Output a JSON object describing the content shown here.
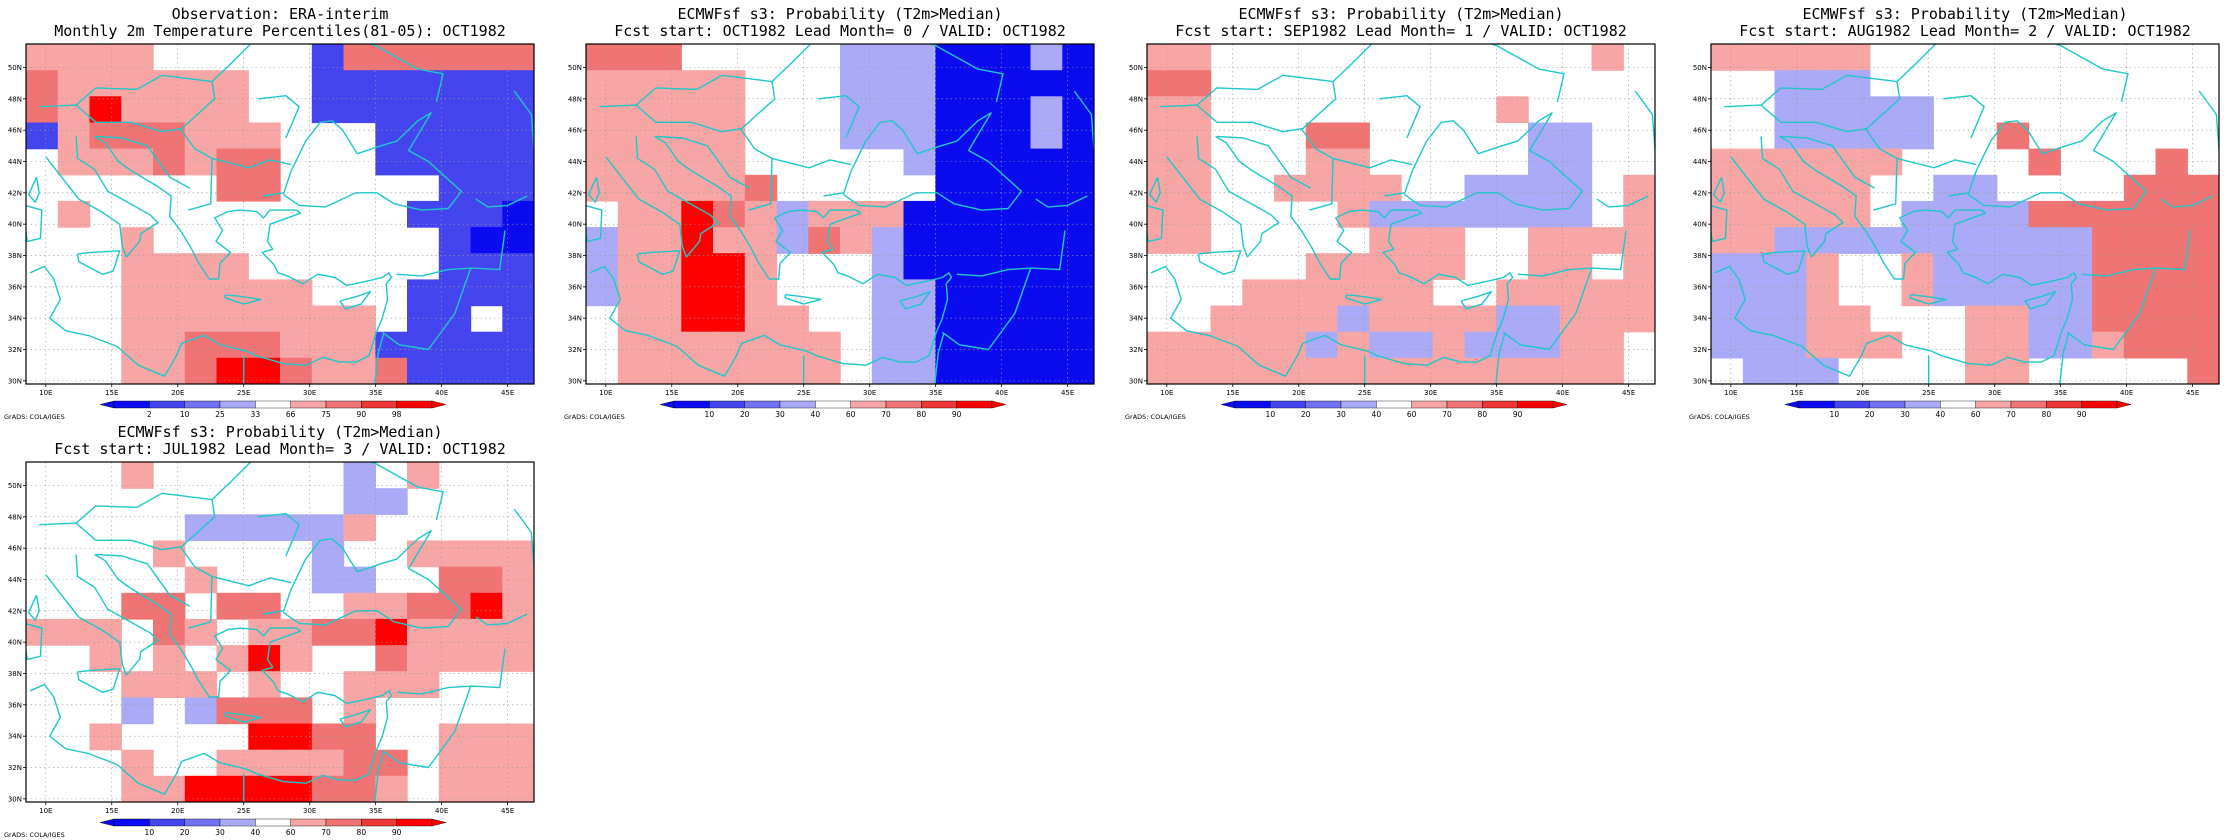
{
  "colors": {
    "dark_red": "#ff0000",
    "red": "#ee3838",
    "mid_red": "#f07474",
    "light_red": "#f8a5a5",
    "white": "#ffffff",
    "light_blue": "#aaaaf6",
    "mid_blue": "#7272f2",
    "blue": "#4545f0",
    "dark_blue": "#0b0bf0",
    "coast": "#1ec8c8",
    "grid": "#9a9a9a"
  },
  "axes": {
    "lon_labels": [
      "10E",
      "15E",
      "20E",
      "25E",
      "30E",
      "35E",
      "40E",
      "45E"
    ],
    "lat_labels": [
      "30N",
      "32N",
      "34N",
      "36N",
      "38N",
      "40N",
      "42N",
      "44N",
      "46N",
      "48N",
      "50N"
    ],
    "lon_range": [
      8.5,
      47
    ],
    "lat_range": [
      29.8,
      51.5
    ]
  },
  "credit": "GrADS: COLA/IGES",
  "colorbar_obs": [
    "2",
    "10",
    "25",
    "33",
    "66",
    "75",
    "90",
    "98"
  ],
  "colorbar_prob": [
    "10",
    "20",
    "30",
    "40",
    "60",
    "70",
    "80",
    "90"
  ],
  "panels": [
    {
      "id": "obs",
      "title1": "Observation: ERA-interim",
      "title2": "Monthly 2m Temperature Percentiles(81-05): OCT1982",
      "colorbar": "obs",
      "rows": [
        "llll.....bmmmmmm",
        "mllllll..bbbbbbb",
        "mlRllll..bbbbbbb",
        "blmmmlll...bbbbb",
        ".lllmlmm...bbbbb",
        "......mm.....bbb",
        ".l..........bbbd",
        "...l.........bdd",
        "...llll......bbb",
        "...llllll...bbbb",
        "...llllllll.bb.b",
        "...llmmmlllbbbbb",
        "...llmRRmllmbbbb"
      ]
    },
    {
      "id": "lead0",
      "title1": "ECMWFsf s3: Probability (T2m>Median)",
      "title2": "Fcst start: OCT1982  Lead Month= 0 / VALID: OCT1982",
      "colorbar": "prob",
      "rows": [
        "mmm.....bbbdddbd",
        "lllll...bbbddddd",
        "lllll...bbbdddbd",
        "lllll...bbbdddbd",
        "lllll.....bddddd",
        "lllllm.....ddddd",
        ".llRmlbllldddddd",
        "bllRllbmlbdddddd",
        "bllRRl...bdddddd",
        "bllRRl...bbddddd",
        ".llRRll..bbddddd",
        ".lllllll.bbddddd",
        ".lllllll.bbddddd"
      ]
    },
    {
      "id": "lead1",
      "title1": "ECMWFsf s3: Probability (T2m>Median)",
      "title2": "Fcst start: SEP1982  Lead Month= 1 / VALID: OCT1982",
      "colorbar": "prob",
      "rows": [
        "ll............l.",
        "mm..............",
        "ll.........l....",
        "ll...mm.....bb..",
        "ll...ll.....bb..",
        "ll..llll..bbbb.l",
        "ll....lbbbbbbb.l",
        "ll.....lll..llll",
        ".....lllll..ll.l",
        "...llllll..lllll",
        "..llllbllllbblll",
        "lllllblbblbbbll.",
        "lllllllllllllll."
      ]
    },
    {
      "id": "lead2",
      "title1": "ECMWFsf s3: Probability (T2m>Median)",
      "title2": "Fcst start: AUG1982  Lead Month= 2 / VALID: OCT1982",
      "colorbar": "prob",
      "rows": [
        "lllll...........",
        "..bbb...........",
        "..bbbbb.........",
        "..bbbbb..m......",
        "llllll....m...m.",
        "lllll..bb....mmm",
        "lllll.bbbbmmmmmm",
        "llbbbbbbbbbbmmmm",
        "bbbl..lbbbbbmmmm",
        "bbbl..lbbbbbmmmm",
        "bbbll...llbbmmmm",
        "bbblll..llbblmmm",
        ".bbb....ll.....m"
      ]
    },
    {
      "id": "lead3",
      "title1": "ECMWFsf s3: Probability (T2m>Median)",
      "title2": "Fcst start: JUL1982  Lead Month= 3 / VALID: OCT1982",
      "colorbar": "prob",
      "rows": [
        "...l......b.l...",
        "..........bb....",
        ".....bbbbbl.....",
        "....l....b..llll",
        ".....l...bb..mml",
        "...mm.mm..llmmRl",
        "lll.ml.llmmRllll",
        "..l.l.lRl..mllll",
        "...lll.l..lll...",
        "...b.bmmm.l.....",
        "..l....RRmm..lll",
        "...l..llllmm.lll",
        "...llRRRRmml.lll"
      ]
    }
  ]
}
